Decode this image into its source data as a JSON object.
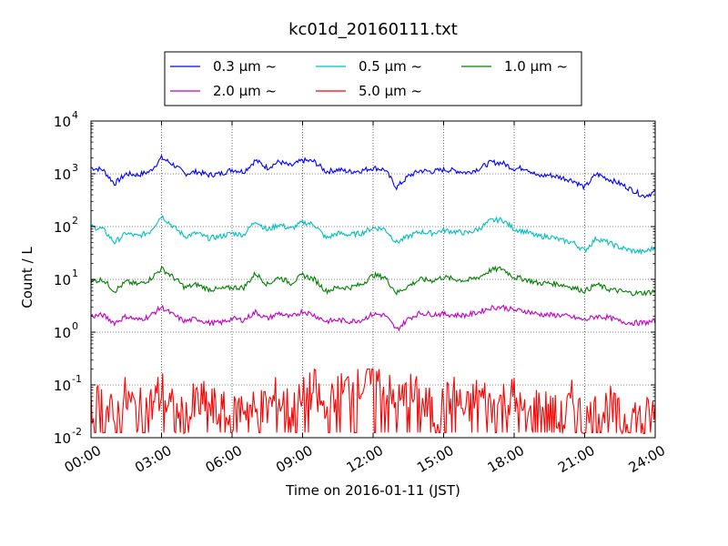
{
  "chart_data": {
    "type": "line",
    "title": "kc01d_20160111.txt",
    "xlabel": "Time on 2016-01-11 (JST)",
    "ylabel": "Count / L",
    "yscale": "log",
    "ylim": [
      0.01,
      10000
    ],
    "xlim_hours": [
      0,
      24
    ],
    "x_ticks": [
      "00:00",
      "03:00",
      "06:00",
      "09:00",
      "12:00",
      "15:00",
      "18:00",
      "21:00",
      "24:00"
    ],
    "y_ticks": [
      {
        "base": "10",
        "exp": "-2"
      },
      {
        "base": "10",
        "exp": "-1"
      },
      {
        "base": "10",
        "exp": "0"
      },
      {
        "base": "10",
        "exp": "1"
      },
      {
        "base": "10",
        "exp": "2"
      },
      {
        "base": "10",
        "exp": "3"
      },
      {
        "base": "10",
        "exp": "4"
      }
    ],
    "grid": true,
    "legend_position": "top",
    "series": [
      {
        "name": "0.3 μm ~",
        "color": "#0000ff",
        "x": [
          0,
          0.5,
          1,
          1.5,
          2,
          2.5,
          3,
          3.5,
          4,
          4.5,
          5,
          5.5,
          6,
          6.5,
          7,
          7.5,
          8,
          8.5,
          9,
          9.5,
          10,
          10.5,
          11,
          11.5,
          12,
          12.5,
          13,
          13.5,
          14,
          14.5,
          15,
          15.5,
          16,
          16.5,
          17,
          17.5,
          18,
          18.5,
          19,
          19.5,
          20,
          20.5,
          21,
          21.5,
          22,
          22.5,
          23,
          23.5,
          24
        ],
        "y": [
          1300,
          1200,
          650,
          1000,
          950,
          1100,
          2000,
          1500,
          1000,
          1100,
          950,
          1000,
          1200,
          1100,
          1800,
          1300,
          1700,
          1400,
          1800,
          1700,
          1100,
          1200,
          1100,
          1150,
          1300,
          1200,
          550,
          900,
          1150,
          1100,
          1200,
          1150,
          1050,
          1250,
          1650,
          1600,
          1250,
          1300,
          900,
          950,
          850,
          750,
          550,
          1000,
          800,
          650,
          500,
          380,
          450
        ]
      },
      {
        "name": "0.5 μm ~",
        "color": "#00bfbf",
        "x": [
          0,
          0.5,
          1,
          1.5,
          2,
          2.5,
          3,
          3.5,
          4,
          4.5,
          5,
          5.5,
          6,
          6.5,
          7,
          7.5,
          8,
          8.5,
          9,
          9.5,
          10,
          10.5,
          11,
          11.5,
          12,
          12.5,
          13,
          13.5,
          14,
          14.5,
          15,
          15.5,
          16,
          16.5,
          17,
          17.5,
          18,
          18.5,
          19,
          19.5,
          20,
          20.5,
          21,
          21.5,
          22,
          22.5,
          23,
          23.5,
          24
        ],
        "y": [
          100,
          90,
          50,
          75,
          65,
          80,
          160,
          100,
          65,
          75,
          60,
          65,
          75,
          70,
          130,
          85,
          110,
          90,
          120,
          110,
          60,
          75,
          70,
          75,
          95,
          90,
          50,
          65,
          80,
          75,
          85,
          80,
          75,
          90,
          130,
          135,
          90,
          80,
          65,
          65,
          55,
          50,
          35,
          60,
          50,
          40,
          35,
          33,
          40
        ]
      },
      {
        "name": "1.0 μm ~",
        "color": "#008000",
        "x": [
          0,
          0.5,
          1,
          1.5,
          2,
          2.5,
          3,
          3.5,
          4,
          4.5,
          5,
          5.5,
          6,
          6.5,
          7,
          7.5,
          8,
          8.5,
          9,
          9.5,
          10,
          10.5,
          11,
          11.5,
          12,
          12.5,
          13,
          13.5,
          14,
          14.5,
          15,
          15.5,
          16,
          16.5,
          17,
          17.5,
          18,
          18.5,
          19,
          19.5,
          20,
          20.5,
          21,
          21.5,
          22,
          22.5,
          23,
          23.5,
          24
        ],
        "y": [
          9,
          10,
          6,
          9,
          8,
          10,
          16,
          11,
          7,
          8,
          6.5,
          6.5,
          7,
          7,
          13,
          8,
          11,
          8.5,
          12,
          10,
          6,
          7,
          7,
          8,
          12,
          11,
          5.5,
          7.5,
          10,
          9.5,
          11,
          10,
          9.5,
          11,
          15,
          16,
          11,
          10,
          8.5,
          8.5,
          8,
          7,
          6,
          8,
          6.5,
          6,
          5.5,
          5.5,
          6
        ]
      },
      {
        "name": "2.0 μm ~",
        "color": "#bf00bf",
        "x": [
          0,
          0.5,
          1,
          1.5,
          2,
          2.5,
          3,
          3.5,
          4,
          4.5,
          5,
          5.5,
          6,
          6.5,
          7,
          7.5,
          8,
          8.5,
          9,
          9.5,
          10,
          10.5,
          11,
          11.5,
          12,
          12.5,
          13,
          13.5,
          14,
          14.5,
          15,
          15.5,
          16,
          16.5,
          17,
          17.5,
          18,
          18.5,
          19,
          19.5,
          20,
          20.5,
          21,
          21.5,
          22,
          22.5,
          23,
          23.5,
          24
        ],
        "y": [
          2,
          2.1,
          1.5,
          2,
          1.7,
          2,
          3,
          2.1,
          1.6,
          1.8,
          1.5,
          1.5,
          1.8,
          1.7,
          2.4,
          1.8,
          2.3,
          1.9,
          2.5,
          2.1,
          1.6,
          1.7,
          1.6,
          1.7,
          2.2,
          2.1,
          1.1,
          1.8,
          2.3,
          2.2,
          2.2,
          2.1,
          2.1,
          2.4,
          2.9,
          3,
          2.6,
          2.5,
          2.2,
          2.1,
          2.1,
          1.9,
          1.7,
          2,
          1.9,
          1.6,
          1.5,
          1.5,
          1.6
        ]
      },
      {
        "name": "5.0 μm ~",
        "color": "#ff0000",
        "x": [
          0,
          0.5,
          1,
          1.5,
          2,
          2.5,
          3,
          3.5,
          4,
          4.5,
          5,
          5.5,
          6,
          6.5,
          7,
          7.5,
          8,
          8.5,
          9,
          9.5,
          10,
          10.5,
          11,
          11.5,
          12,
          12.5,
          13,
          13.5,
          14,
          14.5,
          15,
          15.5,
          16,
          16.5,
          17,
          17.5,
          18,
          18.5,
          19,
          19.5,
          20,
          20.5,
          21,
          21.5,
          22,
          22.5,
          23,
          23.5,
          24
        ],
        "y": [
          0.03,
          0.05,
          0.02,
          0.06,
          0.03,
          0.04,
          0.08,
          0.03,
          0.02,
          0.05,
          0.04,
          0.03,
          0.02,
          0.05,
          0.03,
          0.04,
          0.06,
          0.03,
          0.05,
          0.08,
          0.03,
          0.06,
          0.1,
          0.12,
          0.15,
          0.08,
          0.04,
          0.07,
          0.05,
          0.03,
          0.04,
          0.06,
          0.03,
          0.07,
          0.04,
          0.05,
          0.06,
          0.02,
          0.04,
          0.03,
          0.02,
          0.05,
          0.02,
          0.03,
          0.04,
          0.02,
          0.03,
          0.02,
          0.03
        ]
      }
    ]
  }
}
